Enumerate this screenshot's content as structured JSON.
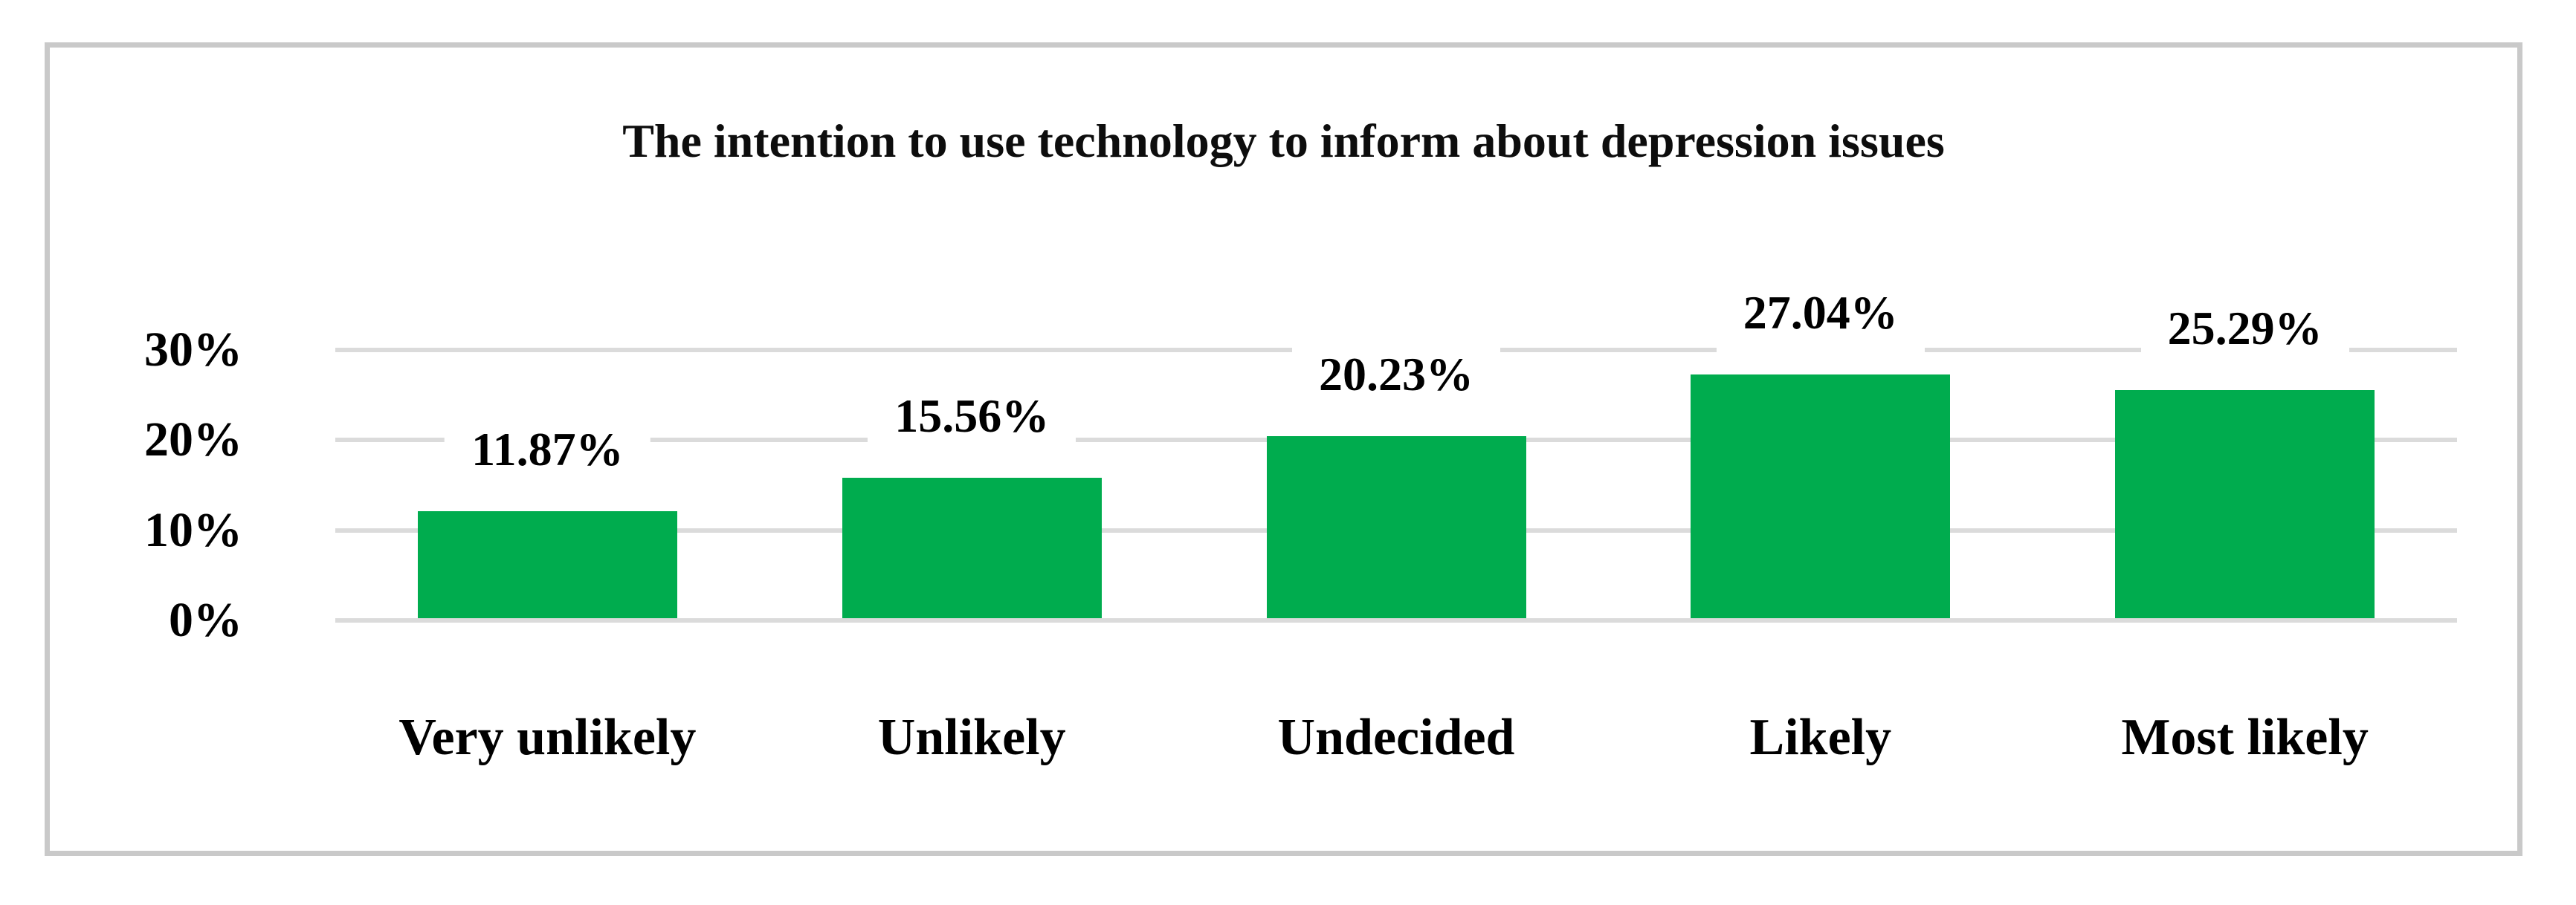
{
  "chart_data": {
    "type": "bar",
    "title": "The intention to use technology to inform about depression issues",
    "categories": [
      "Very unlikely",
      "Unlikely",
      "Undecided",
      "Likely",
      "Most likely"
    ],
    "values": [
      11.87,
      15.56,
      20.23,
      27.04,
      25.29
    ],
    "value_labels": [
      "11.87%",
      "15.56%",
      "20.23%",
      "27.04%",
      "25.29%"
    ],
    "y_ticks": [
      {
        "value": 30,
        "label": "30%"
      },
      {
        "value": 20,
        "label": "20%"
      },
      {
        "value": 10,
        "label": "10%"
      },
      {
        "value": 0,
        "label": "0%"
      }
    ],
    "ylim": [
      0,
      30
    ],
    "xlabel": "",
    "ylabel": "",
    "grid": "horizontal",
    "legend": "none",
    "colors": {
      "bar": "#00AC4E",
      "gridline": "#DBDBDB",
      "frame_border": "#C9C9C9",
      "text": "#000000",
      "background": "#FFFFFF",
      "label_background": "#FFFFFF"
    }
  }
}
